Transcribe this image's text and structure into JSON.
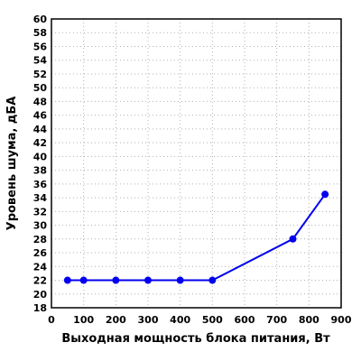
{
  "chart_data": {
    "type": "line",
    "xlabel": "Выходная мощность блока питания, Вт",
    "ylabel": "Уровень шума, дБА",
    "xlim": [
      0,
      900
    ],
    "ylim": [
      18,
      60
    ],
    "x_ticks": [
      0,
      100,
      200,
      300,
      400,
      500,
      600,
      700,
      800,
      900
    ],
    "y_ticks": [
      18,
      20,
      22,
      24,
      26,
      28,
      30,
      32,
      34,
      36,
      38,
      40,
      42,
      44,
      46,
      48,
      50,
      52,
      54,
      56,
      58,
      60
    ],
    "grid": true,
    "series": [
      {
        "color": "#0000ee",
        "x": [
          50,
          100,
          200,
          300,
          400,
          500,
          750,
          850
        ],
        "y": [
          22,
          22,
          22,
          22,
          22,
          22,
          28,
          34.5
        ]
      }
    ]
  }
}
